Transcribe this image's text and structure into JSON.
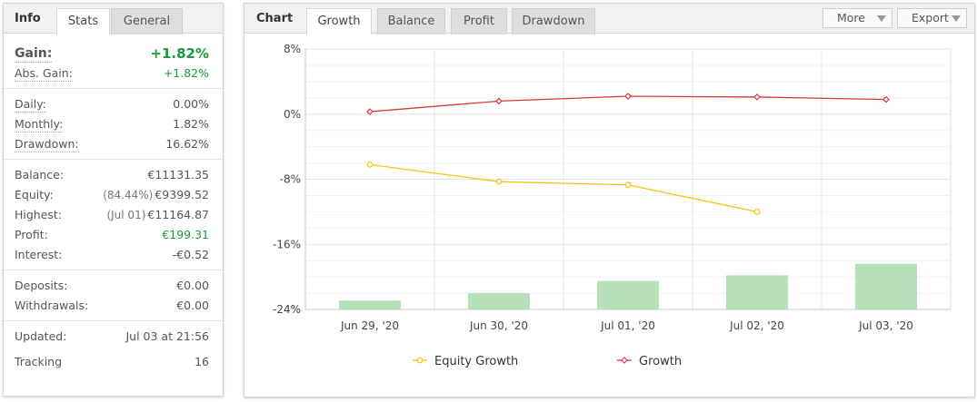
{
  "info_panel": {
    "title": "Info",
    "tabs": [
      {
        "label": "Stats",
        "active": true
      },
      {
        "label": "General",
        "active": false
      }
    ],
    "gain": {
      "label": "Gain:",
      "value": "+1.82%"
    },
    "abs_gain": {
      "label": "Abs. Gain:",
      "value": "+1.82%"
    },
    "daily": {
      "label": "Daily:",
      "value": "0.00%"
    },
    "monthly": {
      "label": "Monthly:",
      "value": "1.82%"
    },
    "drawdown": {
      "label": "Drawdown:",
      "value": "16.62%"
    },
    "balance": {
      "label": "Balance:",
      "value": "€11131.35"
    },
    "equity": {
      "label": "Equity:",
      "prefix": "(84.44%)",
      "value": "€9399.52"
    },
    "highest": {
      "label": "Highest:",
      "prefix": "(Jul 01)",
      "value": "€11164.87"
    },
    "profit": {
      "label": "Profit:",
      "value": "€199.31"
    },
    "interest": {
      "label": "Interest:",
      "value": "-€0.52"
    },
    "deposits": {
      "label": "Deposits:",
      "value": "€0.00"
    },
    "withdrawals": {
      "label": "Withdrawals:",
      "value": "€0.00"
    },
    "updated": {
      "label": "Updated:",
      "value": "Jul 03 at 21:56"
    },
    "tracking": {
      "label": "Tracking",
      "value": "16"
    }
  },
  "chart_panel": {
    "title": "Chart",
    "tabs": [
      {
        "label": "Growth",
        "active": true
      },
      {
        "label": "Balance",
        "active": false
      },
      {
        "label": "Profit",
        "active": false
      },
      {
        "label": "Drawdown",
        "active": false
      }
    ],
    "more_label": "More",
    "export_label": "Export"
  },
  "colors": {
    "equity_line": "#f5c211",
    "growth_line": "#d63b3b",
    "bars": "#b5e0b8",
    "positive": "#1a9a3a"
  },
  "chart_data": {
    "type": "line",
    "categories": [
      "Jun 29, '20",
      "Jun 30, '20",
      "Jul 01, '20",
      "Jul 02, '20",
      "Jul 03, '20"
    ],
    "ylim": [
      -24,
      8
    ],
    "yticks": [
      "8%",
      "0%",
      "-8%",
      "-16%",
      "-24%"
    ],
    "ytick_values": [
      8,
      0,
      -8,
      -16,
      -24
    ],
    "series": [
      {
        "name": "Equity Growth",
        "type": "line",
        "values": [
          -6.2,
          -8.3,
          -8.7,
          -12.0,
          null
        ]
      },
      {
        "name": "Growth",
        "type": "line",
        "values": [
          0.3,
          1.6,
          2.2,
          2.1,
          1.8
        ]
      }
    ],
    "bars": {
      "values": [
        -22.9,
        -22.0,
        -20.5,
        -19.8,
        -18.4
      ]
    },
    "legend": [
      "Equity Growth",
      "Growth"
    ],
    "legend_position": "bottom",
    "grid": true
  }
}
